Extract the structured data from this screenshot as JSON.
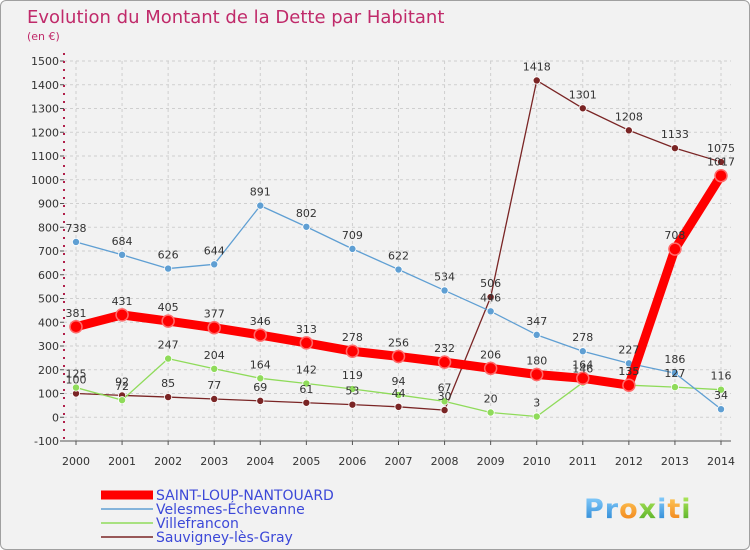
{
  "chart_data": {
    "type": "line",
    "title": "Evolution du Montant de la Dette par Habitant",
    "subtitle": "(en €)",
    "xlabel": "",
    "ylabel": "",
    "x": [
      "2000",
      "2001",
      "2002",
      "2003",
      "2004",
      "2005",
      "2006",
      "2007",
      "2008",
      "2009",
      "2010",
      "2011",
      "2012",
      "2013",
      "2014"
    ],
    "ylim": [
      -100,
      1500
    ],
    "yticks": [
      -100,
      0,
      100,
      200,
      300,
      400,
      500,
      600,
      700,
      800,
      900,
      1000,
      1100,
      1200,
      1300,
      1400,
      1500
    ],
    "grid": true,
    "legend_position": "bottom-left",
    "series": [
      {
        "name": "SAINT-LOUP-NANTOUARD",
        "color": "#ff0000",
        "values": [
          381,
          431,
          405,
          377,
          346,
          313,
          278,
          256,
          232,
          206,
          180,
          164,
          135,
          708,
          1017
        ]
      },
      {
        "name": "Velesmes-Échevanne",
        "color": "#5f9fd3",
        "values": [
          738,
          684,
          626,
          644,
          891,
          802,
          709,
          622,
          534,
          446,
          347,
          278,
          227,
          186,
          34
        ]
      },
      {
        "name": "Villefrancon",
        "color": "#8fdb5a",
        "values": [
          125,
          72,
          247,
          204,
          164,
          142,
          119,
          94,
          67,
          20,
          3,
          146,
          135,
          127,
          116
        ]
      },
      {
        "name": "Sauvigney-lès-Gray",
        "color": "#7a2525",
        "values": [
          100,
          92,
          85,
          77,
          69,
          61,
          53,
          44,
          30,
          506,
          1418,
          1301,
          1208,
          1133,
          1075
        ]
      }
    ]
  },
  "watermark": "Proxiti"
}
